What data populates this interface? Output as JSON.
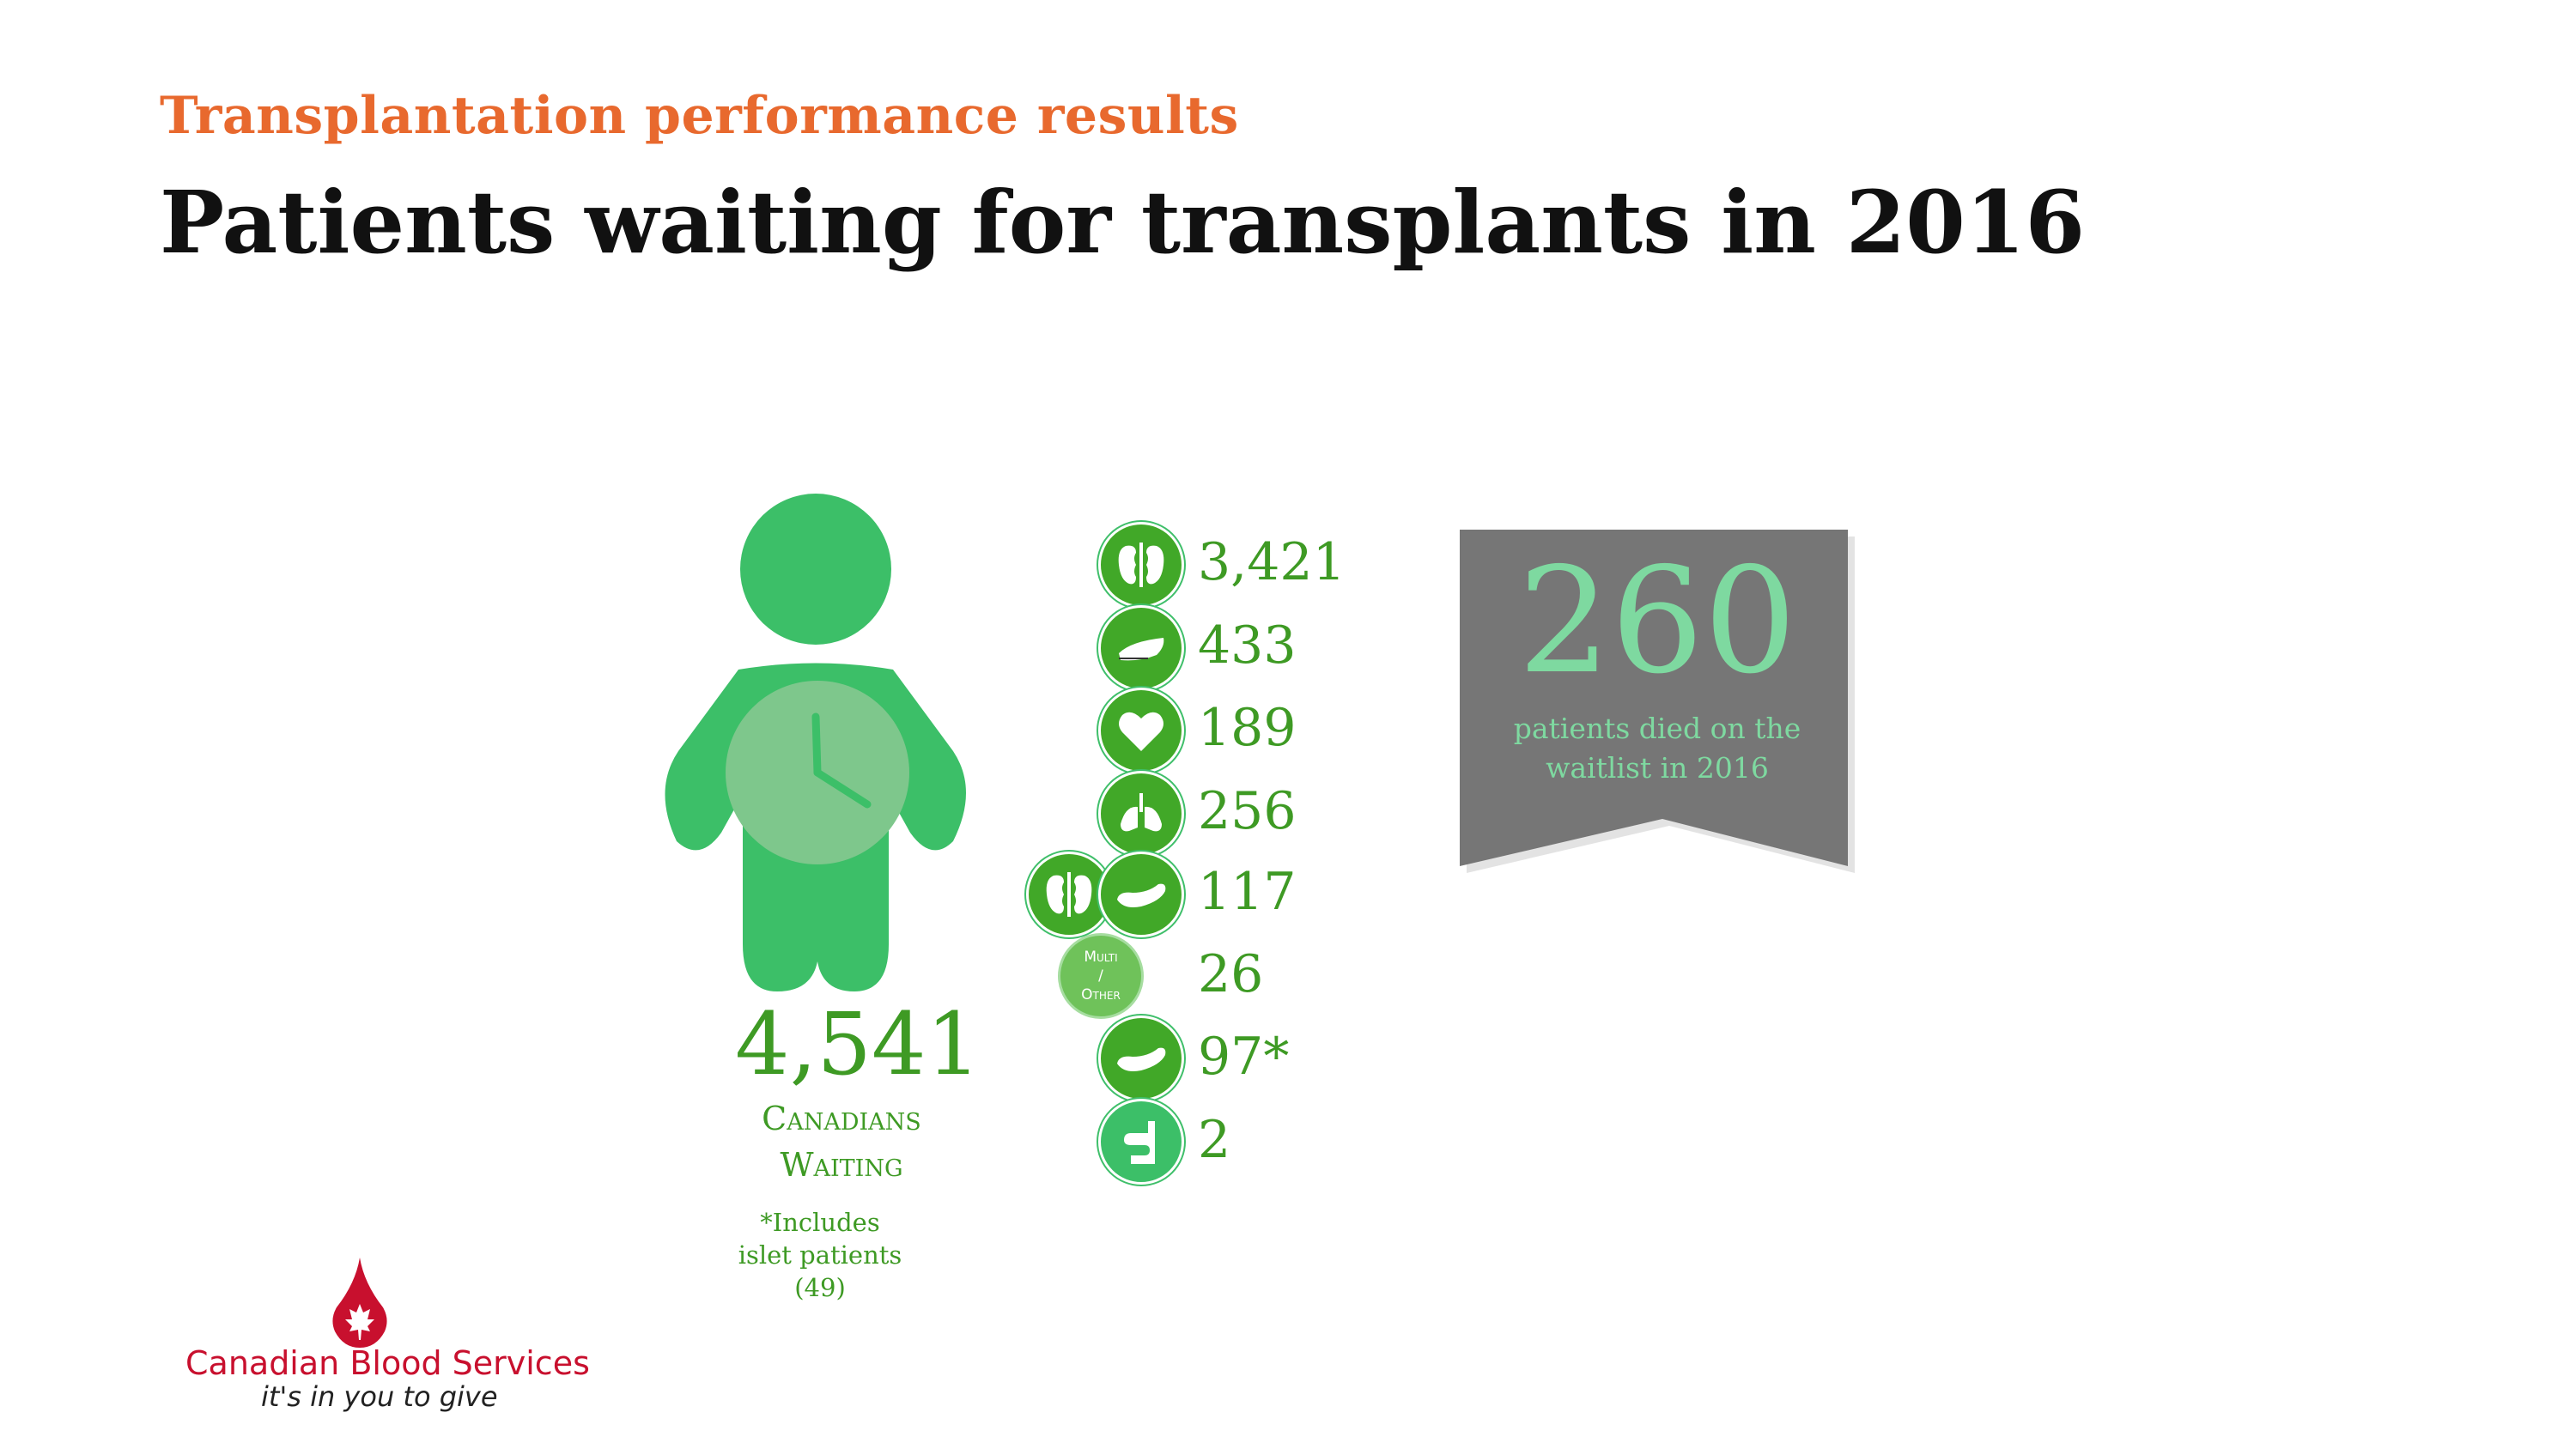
{
  "header": {
    "subtitle": "Transplantation performance results",
    "title": "Patients waiting for transplants in 2016"
  },
  "summary": {
    "total": "4,541",
    "caption_line1": "Canadians",
    "caption_line2": "Waiting",
    "footnote_line1": "*Includes",
    "footnote_line2": "islet patients",
    "footnote_line3": "(49)"
  },
  "organs": [
    {
      "icon": "kidney-icon",
      "value": "3,421"
    },
    {
      "icon": "liver-icon",
      "value": "433"
    },
    {
      "icon": "heart-icon",
      "value": "189"
    },
    {
      "icon": "lungs-icon",
      "value": "256"
    },
    {
      "icon": "kidney-pancreas-icon",
      "value": "117"
    },
    {
      "icon": "multi-other-icon",
      "value": "26",
      "label_line1": "Multi",
      "label_line2": "/",
      "label_line3": "Other"
    },
    {
      "icon": "pancreas-icon",
      "value": "97*"
    },
    {
      "icon": "intestine-icon",
      "value": "2"
    }
  ],
  "deaths": {
    "value": "260",
    "caption_line1": "patients died on the",
    "caption_line2": "waitlist in 2016"
  },
  "logo": {
    "name": "Canadian Blood Services",
    "tagline": "it's in you to give"
  },
  "colors": {
    "accent_orange": "#e8692e",
    "organ_green": "#41a828",
    "person_green": "#3cbf68",
    "banner_gray": "#767676",
    "banner_text": "#7ed9a0",
    "logo_red": "#c8102e"
  }
}
